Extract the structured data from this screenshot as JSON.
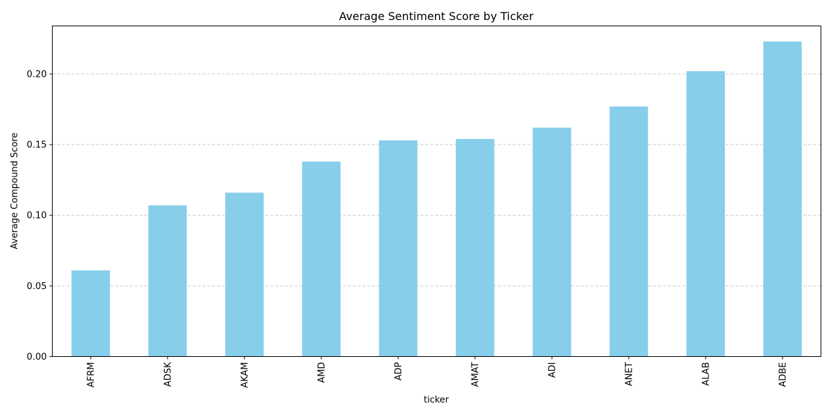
{
  "chart_data": {
    "type": "bar",
    "title": "Average Sentiment Score by Ticker",
    "xlabel": "ticker",
    "ylabel": "Average Compound Score",
    "categories": [
      "AFRM",
      "ADSK",
      "AKAM",
      "AMD",
      "ADP",
      "AMAT",
      "ADI",
      "ANET",
      "ALAB",
      "ADBE"
    ],
    "values": [
      0.061,
      0.107,
      0.116,
      0.138,
      0.153,
      0.154,
      0.162,
      0.177,
      0.202,
      0.223
    ],
    "ylim": [
      0,
      0.234
    ],
    "yticks": [
      0.0,
      0.05,
      0.1,
      0.15,
      0.2
    ],
    "ytick_labels": [
      "0.00",
      "0.05",
      "0.10",
      "0.15",
      "0.20"
    ],
    "grid": "y-axis dashed",
    "legend": "none",
    "bar_color": "#87ceeb",
    "grid_color": "#c8c8c8"
  }
}
